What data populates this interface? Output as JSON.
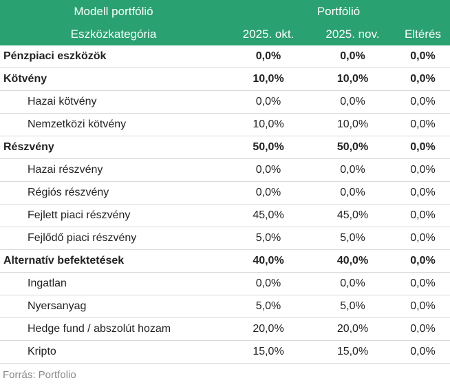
{
  "header": {
    "model_title": "Modell portfólió",
    "portfolio_title": "Portfólió",
    "columns": [
      "Eszközkategória",
      "2025. okt.",
      "2025. nov.",
      "Eltérés"
    ]
  },
  "table": {
    "rows": [
      [
        "Pénzpiaci eszközök",
        "0,0%",
        "0,0%",
        "0,0%"
      ],
      [
        "Kötvény",
        "10,0%",
        "10,0%",
        "0,0%"
      ],
      [
        "Hazai kötvény",
        "0,0%",
        "0,0%",
        "0,0%"
      ],
      [
        "Nemzetközi kötvény",
        "10,0%",
        "10,0%",
        "0,0%"
      ],
      [
        "Részvény",
        "50,0%",
        "50,0%",
        "0,0%"
      ],
      [
        "Hazai részvény",
        "0,0%",
        "0,0%",
        "0,0%"
      ],
      [
        "Régiós részvény",
        "0,0%",
        "0,0%",
        "0,0%"
      ],
      [
        "Fejlett piaci részvény",
        "45,0%",
        "45,0%",
        "0,0%"
      ],
      [
        "Fejlődő piaci részvény",
        "5,0%",
        "5,0%",
        "0,0%"
      ],
      [
        "Alternatív befektetések",
        "40,0%",
        "40,0%",
        "0,0%"
      ],
      [
        "Ingatlan",
        "0,0%",
        "0,0%",
        "0,0%"
      ],
      [
        "Nyersanyag",
        "5,0%",
        "5,0%",
        "0,0%"
      ],
      [
        "Hedge fund / abszolút hozam",
        "20,0%",
        "20,0%",
        "0,0%"
      ],
      [
        "Kripto",
        "15,0%",
        "15,0%",
        "0,0%"
      ]
    ]
  },
  "source": "Forrás: Portfolio"
}
